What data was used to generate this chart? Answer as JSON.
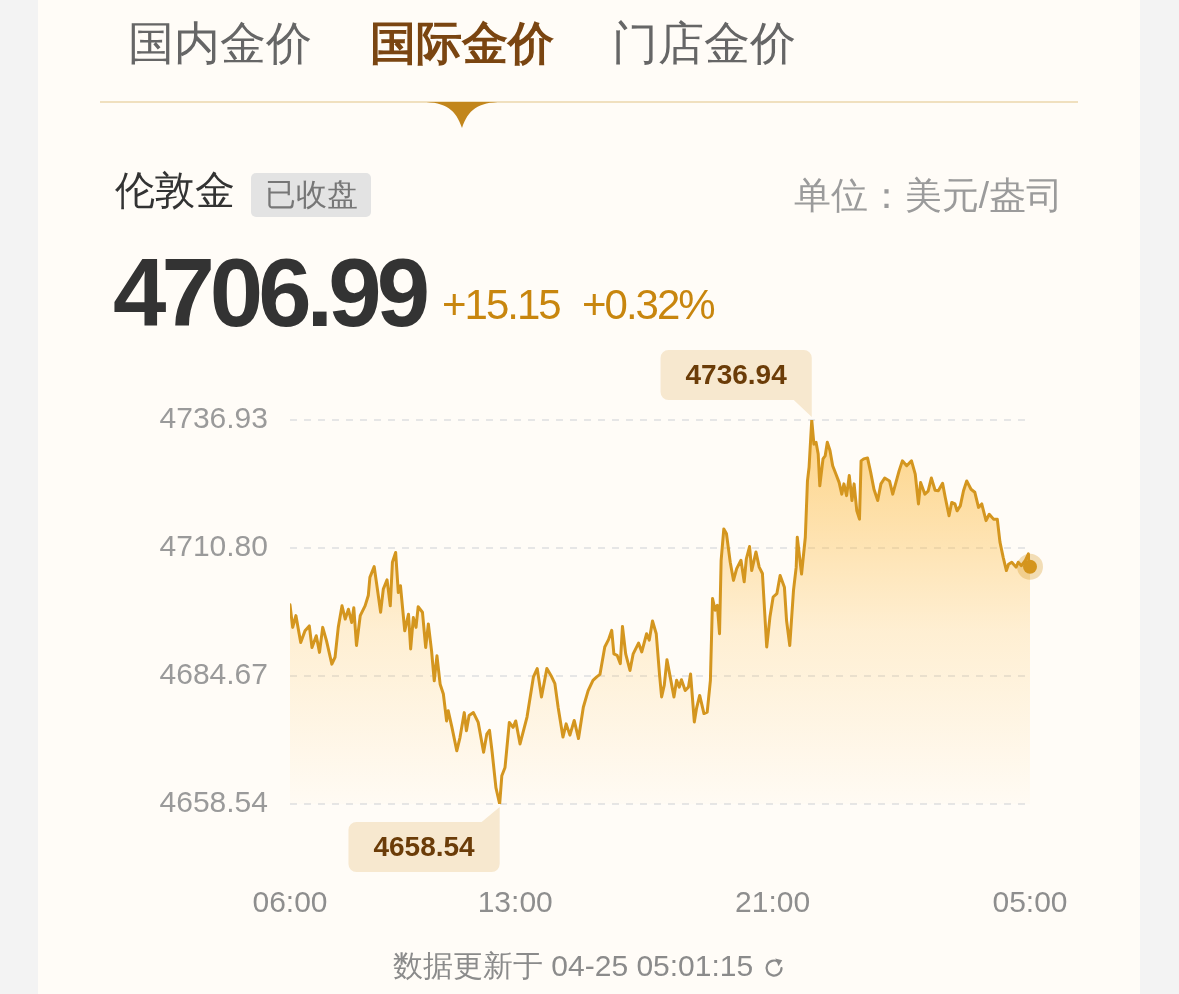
{
  "chart_data": {
    "type": "area",
    "title": "伦敦金",
    "annotations": [
      "国内金价",
      "国际金价",
      "门店金价",
      "已收盘",
      "单位：美元/盎司",
      "4706.99",
      "+15.15",
      "+0.32%",
      "数据更新于 04-25 05:01:15",
      {
        "text": "4736.94",
        "x": "--04-24T22:13",
        "y": 4736.94
      },
      {
        "text": "4658.54",
        "x": "--04-24T12:31",
        "y": 4658.54
      }
    ],
    "series": [
      {
        "color": "#d4961f",
        "x": [
          "--04-24T06:00",
          "--04-24T06:05",
          "--04-24T06:11",
          "--04-24T06:20",
          "--04-24T06:28",
          "--04-24T06:36",
          "--04-24T06:41",
          "--04-24T06:49",
          "--04-24T06:55",
          "--04-24T07:01",
          "--04-24T07:08",
          "--04-24T07:18",
          "--04-24T07:24",
          "--04-24T07:30",
          "--04-24T07:37",
          "--04-24T07:43",
          "--04-24T07:49",
          "--04-24T07:55",
          "--04-24T07:59",
          "--04-24T08:04",
          "--04-24T08:11",
          "--04-24T08:20",
          "--04-24T08:26",
          "--04-24T08:29",
          "--04-24T08:37",
          "--04-24T08:43",
          "--04-24T08:49",
          "--04-24T08:54",
          "--04-24T09:01",
          "--04-24T09:07",
          "--04-24T09:11",
          "--04-24T09:17",
          "--04-24T09:22",
          "--04-24T09:26",
          "--04-24T09:34",
          "--04-24T09:41",
          "--04-24T09:45",
          "--04-24T09:50",
          "--04-24T09:55",
          "--04-24T09:59",
          "--04-24T10:07",
          "--04-24T10:13",
          "--04-24T10:18",
          "--04-24T10:24",
          "--04-24T10:29",
          "--04-24T10:34",
          "--04-24T10:40",
          "--04-24T10:46",
          "--04-24T10:52",
          "--04-24T10:55",
          "--04-24T11:02",
          "--04-24T11:11",
          "--04-24T11:17",
          "--04-24T11:25",
          "--04-24T11:29",
          "--04-24T11:34",
          "--04-24T11:42",
          "--04-24T11:51",
          "--04-24T12:01",
          "--04-24T12:07",
          "--04-24T12:12",
          "--04-24T12:17",
          "--04-24T12:24",
          "--04-24T12:31",
          "--04-24T12:35",
          "--04-24T12:41",
          "--04-24T12:49",
          "--04-24T12:56",
          "--04-24T13:01",
          "--04-24T13:09",
          "--04-24T13:22",
          "--04-24T13:34",
          "--04-24T13:41",
          "--04-24T13:49",
          "--04-24T13:59",
          "--04-24T14:08",
          "--04-24T14:14",
          "--04-24T14:20",
          "--04-24T14:29",
          "--04-24T14:35",
          "--04-24T14:42",
          "--04-24T14:50",
          "--04-24T14:58",
          "--04-24T15:07",
          "--04-24T15:16",
          "--04-24T15:25",
          "--04-24T15:32",
          "--04-24T15:38",
          "--04-24T15:47",
          "--04-24T15:54",
          "--04-24T16:00",
          "--04-24T16:04",
          "--04-24T16:10",
          "--04-24T16:16",
          "--04-24T16:20",
          "--04-24T16:26",
          "--04-24T16:34",
          "--04-24T16:40",
          "--04-24T16:50",
          "--04-24T16:56",
          "--04-24T17:05",
          "--04-24T17:10",
          "--04-24T17:16",
          "--04-24T17:23",
          "--04-24T17:29",
          "--04-24T17:33",
          "--04-24T17:38",
          "--04-24T17:43",
          "--04-24T17:49",
          "--04-24T17:56",
          "--04-24T18:01",
          "--04-24T18:06",
          "--04-24T18:10",
          "--04-24T18:17",
          "--04-24T18:23",
          "--04-24T18:27",
          "--04-24T18:34",
          "--04-24T18:38",
          "--04-24T18:44",
          "--04-24T18:52",
          "--04-24T18:58",
          "--04-24T19:04",
          "--04-24T19:08",
          "--04-24T19:13",
          "--04-24T19:17",
          "--04-24T19:21",
          "--04-24T19:24",
          "--04-24T19:29",
          "--04-24T19:34",
          "--04-24T19:41",
          "--04-24T19:47",
          "--04-24T19:53",
          "--04-24T20:01",
          "--04-24T20:07",
          "--04-24T20:11",
          "--04-24T20:17",
          "--04-24T20:21",
          "--04-24T20:29",
          "--04-24T20:35",
          "--04-24T20:41",
          "--04-24T20:49",
          "--04-24T20:55",
          "--04-24T21:01",
          "--04-24T21:08",
          "--04-24T21:14",
          "--04-24T21:22",
          "--04-24T21:26",
          "--04-24T21:32",
          "--04-24T21:39",
          "--04-24T21:44",
          "--04-24T21:46",
          "--04-24T21:54",
          "--04-24T22:01",
          "--04-24T22:05",
          "--04-24T22:08",
          "--04-24T22:13",
          "--04-24T22:17",
          "--04-24T22:21",
          "--04-24T22:25",
          "--04-24T22:28",
          "--04-24T22:34",
          "--04-24T22:38",
          "--04-24T22:42",
          "--04-24T22:47",
          "--04-24T22:52",
          "--04-24T22:58",
          "--04-24T23:04",
          "--04-24T23:09",
          "--04-24T23:13",
          "--04-24T23:18",
          "--04-24T23:23",
          "--04-24T23:28",
          "--04-24T23:32",
          "--04-24T23:37",
          "--04-24T23:42",
          "--04-24T23:45",
          "--04-24T23:50",
          "--04-24T23:57",
          "--04-25T00:03",
          "--04-25T00:09",
          "--04-25T00:16",
          "--04-25T00:22",
          "--04-25T00:29",
          "--04-25T00:38",
          "--04-25T00:44",
          "--04-25T00:50",
          "--04-25T00:56",
          "--04-25T01:02",
          "--04-25T01:10",
          "--04-25T01:19",
          "--04-25T01:26",
          "--04-25T01:32",
          "--04-25T01:36",
          "--04-25T01:44",
          "--04-25T01:50",
          "--04-25T01:56",
          "--04-25T02:03",
          "--04-25T02:09",
          "--04-25T02:17",
          "--04-25T02:22",
          "--04-25T02:29",
          "--04-25T02:34",
          "--04-25T02:40",
          "--04-25T02:44",
          "--04-25T02:50",
          "--04-25T02:56",
          "--04-25T03:02",
          "--04-25T03:10",
          "--04-25T03:17",
          "--04-25T03:24",
          "--04-25T03:30",
          "--04-25T03:38",
          "--04-25T03:44",
          "--04-25T03:52",
          "--04-25T03:59",
          "--04-25T04:04",
          "--04-25T04:10",
          "--04-25T04:16",
          "--04-25T04:20",
          "--04-25T04:26",
          "--04-25T04:34",
          "--04-25T04:38",
          "--04-25T04:44",
          "--04-25T04:51",
          "--04-25T04:57",
          "--04-25T05:00"
        ],
        "values": [
          4699.2,
          4694.6,
          4697.0,
          4691.5,
          4693.9,
          4694.9,
          4690.5,
          4692.9,
          4689.5,
          4694.6,
          4691.9,
          4687.1,
          4688.5,
          4694.6,
          4699.0,
          4696.3,
          4698.3,
          4695.6,
          4698.6,
          4690.9,
          4697.0,
          4699.0,
          4701.1,
          4704.8,
          4707.0,
          4702.4,
          4697.7,
          4702.4,
          4704.3,
          4699.0,
          4707.9,
          4709.9,
          4701.7,
          4703.1,
          4693.9,
          4697.3,
          4690.2,
          4696.6,
          4694.6,
          4698.8,
          4697.7,
          4690.5,
          4695.3,
          4689.8,
          4683.7,
          4688.8,
          4683.0,
          4681.0,
          4675.5,
          4677.6,
          4674.2,
          4669.4,
          4672.1,
          4677.2,
          4673.5,
          4676.6,
          4677.2,
          4675.2,
          4669.1,
          4672.8,
          4673.6,
          4669.1,
          4661.9,
          4658.54,
          4664.3,
          4666.0,
          4675.2,
          4674.2,
          4675.5,
          4670.8,
          4676.3,
          4684.5,
          4686.2,
          4680.4,
          4686.2,
          4684.5,
          4683.1,
          4678.3,
          4672.2,
          4674.9,
          4672.6,
          4675.6,
          4671.9,
          4678.3,
          4681.7,
          4683.8,
          4684.5,
          4685.0,
          4690.6,
          4692.1,
          4694.0,
          4689.2,
          4688.9,
          4687.2,
          4694.8,
          4689.2,
          4685.8,
          4689.2,
          4691.4,
          4689.6,
          4693.3,
          4692.0,
          4695.9,
          4693.3,
          4685.1,
          4680.4,
          4682.8,
          4688.0,
          4684.5,
          4680.4,
          4683.8,
          4682.4,
          4683.9,
          4681.7,
          4682.4,
          4685.1,
          4675.3,
          4678.0,
          4680.7,
          4677.0,
          4677.3,
          4683.8,
          4700.5,
          4698.1,
          4699.1,
          4693.3,
          4708.3,
          4714.7,
          4713.7,
          4707.9,
          4704.2,
          4706.6,
          4708.3,
          4703.9,
          4708.6,
          4711.1,
          4706.2,
          4710.0,
          4706.9,
          4705.6,
          4690.6,
          4696.7,
          4700.8,
          4701.5,
          4705.2,
          4702.8,
          4696.0,
          4690.9,
          4702.2,
          4706.9,
          4713.0,
          4705.5,
          4713.0,
          4724.5,
          4727.3,
          4736.94,
          4732.0,
          4732.4,
          4730.0,
          4723.5,
          4729.0,
          4729.6,
          4732.4,
          4730.7,
          4727.6,
          4725.9,
          4724.2,
          4721.8,
          4723.9,
          4721.5,
          4725.6,
          4720.5,
          4723.9,
          4718.4,
          4716.7,
          4728.6,
          4729.0,
          4729.2,
          4726.2,
          4722.8,
          4720.5,
          4723.9,
          4725.1,
          4724.5,
          4721.8,
          4724.2,
          4726.6,
          4728.6,
          4727.6,
          4728.6,
          4725.9,
          4719.8,
          4724.2,
          4721.8,
          4722.4,
          4725.1,
          4722.6,
          4722.5,
          4724.0,
          4721.1,
          4717.4,
          4720.1,
          4719.8,
          4718.4,
          4719.4,
          4722.5,
          4724.5,
          4722.8,
          4722.2,
          4719.1,
          4719.8,
          4716.4,
          4717.7,
          4716.7,
          4716.7,
          4712.0,
          4708.9,
          4706.2,
          4707.5,
          4707.9,
          4706.9,
          4707.9,
          4707.2,
          4708.2,
          4709.6,
          4706.99
        ]
      },
      {
        "type": "scatter",
        "marker": "circle",
        "color": "#d4961f",
        "x": [
          "--04-25T05:00"
        ],
        "values": [
          4706.99
        ]
      }
    ],
    "xlim": [
      "--04-24T06:00",
      "--04-25T05:00"
    ],
    "xticks": [
      {
        "value": "--04-24T06:00",
        "label": "06:00"
      },
      {
        "value": "--04-24T13:00",
        "label": "13:00"
      },
      {
        "value": "--04-24T21:00",
        "label": "21:00"
      },
      {
        "value": "--04-25T05:00",
        "label": "05:00"
      }
    ],
    "ylim": [
      4658.54,
      4736.94
    ],
    "yticks": [
      4658.54,
      4684.67,
      {
        "value": 4710.8,
        "label": "4710.80"
      },
      4736.93
    ],
    "grid": "y"
  }
}
